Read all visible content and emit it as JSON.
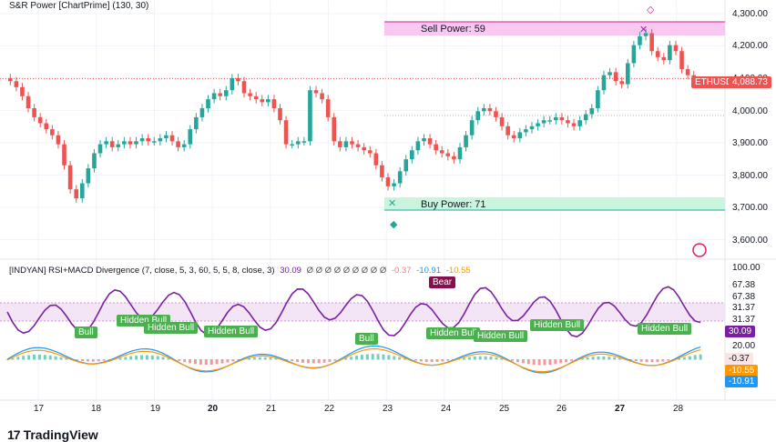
{
  "title": "S&R Power [ChartPrime] (130, 30)",
  "symbol": "ETHUSD",
  "current_price": "4,088.73",
  "sell_power_label": "Sell Power: 59",
  "buy_power_label": "Buy Power: 71",
  "indicator_header": {
    "name": "[INDYAN] RSI+MACD Divergence (7, close, 5, 3, 60, 5, 5, 8, close, 3)",
    "rsi": "30.09",
    "zeros": "Ø Ø Ø Ø Ø Ø Ø Ø Ø",
    "v1": "-0.37",
    "v2": "-10.91",
    "v3": "-10.55"
  },
  "price_axis": [
    "4,300.00",
    "4,200.00",
    "4,100.00",
    "4,000.00",
    "3,900.00",
    "3,800.00",
    "3,700.00",
    "3,600.00"
  ],
  "rsi_axis": [
    "100.00",
    "67.38",
    "67.38",
    "31.37",
    "31.37",
    "20.00"
  ],
  "rsi_tag": "30.09",
  "macd_tags": [
    "-0.37",
    "-10.55",
    "-10.91"
  ],
  "x_axis": [
    "17",
    "18",
    "19",
    "20",
    "21",
    "22",
    "23",
    "24",
    "25",
    "26",
    "27",
    "28"
  ],
  "signals": [
    {
      "text": "Bull",
      "type": "bull"
    },
    {
      "text": "Hidden Bull",
      "type": "bull"
    },
    {
      "text": "Hidden Bull",
      "type": "bull"
    },
    {
      "text": "Hidden Bull",
      "type": "bull"
    },
    {
      "text": "Bull",
      "type": "bull"
    },
    {
      "text": "Bear",
      "type": "bear"
    },
    {
      "text": "Hidden Bull",
      "type": "bull"
    },
    {
      "text": "Hidden Bull",
      "type": "bull"
    },
    {
      "text": "Hidden Bull",
      "type": "bull"
    },
    {
      "text": "Hidden Bull",
      "type": "bull"
    },
    {
      "text": "Hidden Bull",
      "type": "bull"
    }
  ],
  "brand": "TradingView",
  "colors": {
    "up": "#26a69a",
    "down": "#ef5350",
    "rsi": "#7b1fa2",
    "sell_zone": "#f8c8f0",
    "buy_zone": "#c8f5dc",
    "bull": "#4caf50",
    "bear": "#880e4f",
    "macd": "#2196f3",
    "signal": "#ff9800"
  },
  "chart_data": {
    "type": "candlestick",
    "title": "S&R Power [ChartPrime] (130, 30)",
    "symbol": "ETHUSD",
    "ylim": [
      3560,
      4320
    ],
    "levels": {
      "sell_power": 4260,
      "buy_power": 3710,
      "last": 4088.73
    },
    "closes": [
      4080,
      4060,
      4030,
      3990,
      3960,
      3940,
      3920,
      3900,
      3870,
      3800,
      3720,
      3690,
      3740,
      3790,
      3840,
      3870,
      3880,
      3860,
      3870,
      3880,
      3870,
      3880,
      3890,
      3880,
      3880,
      3890,
      3900,
      3880,
      3860,
      3870,
      3920,
      3960,
      3990,
      4020,
      4040,
      4030,
      4050,
      4090,
      4080,
      4040,
      4030,
      4020,
      4010,
      4020,
      3990,
      3950,
      3870,
      3870,
      3880,
      3880,
      4050,
      4040,
      4020,
      3960,
      3880,
      3860,
      3880,
      3870,
      3860,
      3850,
      3840,
      3800,
      3760,
      3730,
      3740,
      3780,
      3820,
      3850,
      3880,
      3890,
      3870,
      3850,
      3840,
      3830,
      3820,
      3860,
      3900,
      3950,
      3980,
      3990,
      3980,
      3960,
      3930,
      3900,
      3890,
      3910,
      3920,
      3930,
      3940,
      3950,
      3950,
      3960,
      3950,
      3940,
      3930,
      3950,
      3970,
      3990,
      4050,
      4100,
      4110,
      4080,
      4070,
      4140,
      4200,
      4230,
      4240,
      4180,
      4160,
      4150,
      4200,
      4180,
      4120,
      4100,
      4088.73
    ]
  }
}
